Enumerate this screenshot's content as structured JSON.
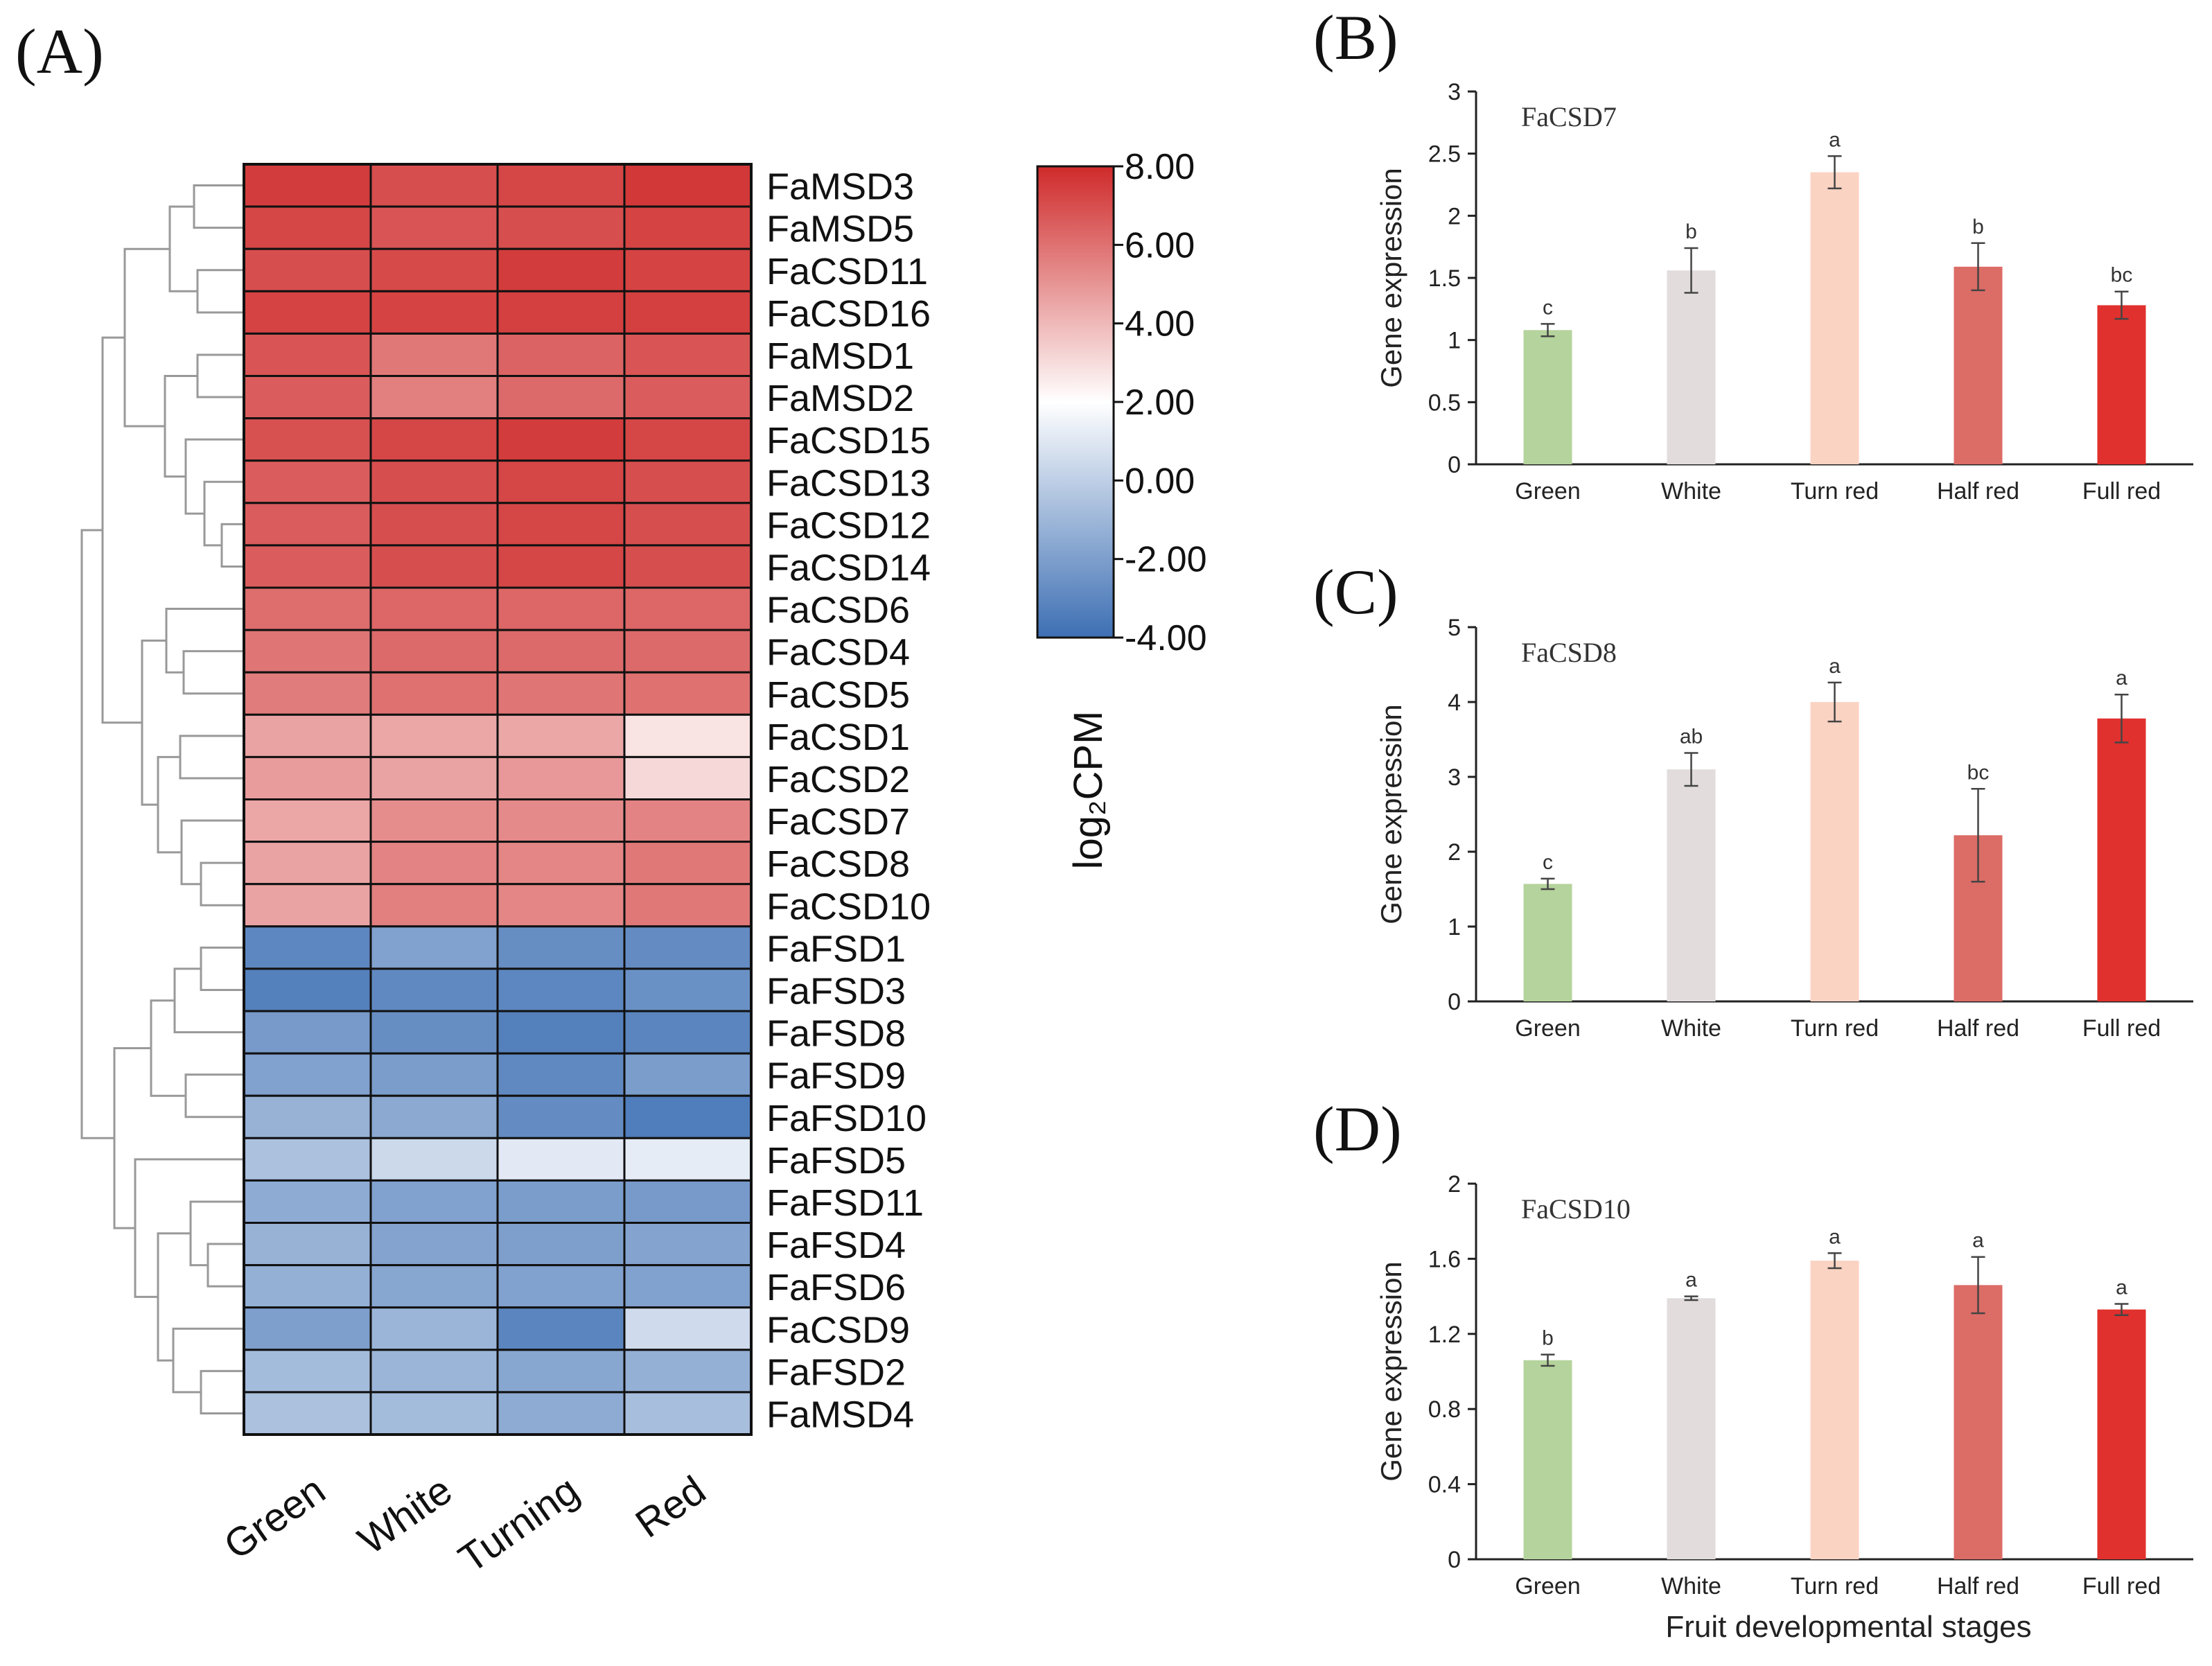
{
  "colors": {
    "heat_high": "#cf2a2a",
    "heat_mid": "#ffffff",
    "heat_low": "#3d6fb3",
    "bar_green": "#b5d39c",
    "bar_white": "#e2dcdc",
    "bar_turn_red": "#fbd3c3",
    "bar_half_red": "#dc6c66",
    "bar_full_red": "#e0312e",
    "axis": "#222222",
    "dendrogram": "#999999"
  },
  "chart_data": [
    {
      "panel_label": "(A)",
      "type": "heatmap",
      "columns": [
        "Green",
        "White",
        "Turning",
        "Red"
      ],
      "rows": [
        "FaMSD3",
        "FaMSD5",
        "FaCSD11",
        "FaCSD16",
        "FaMSD1",
        "FaMSD2",
        "FaCSD15",
        "FaCSD13",
        "FaCSD12",
        "FaCSD14",
        "FaCSD6",
        "FaCSD4",
        "FaCSD5",
        "FaCSD1",
        "FaCSD2",
        "FaCSD7",
        "FaCSD8",
        "FaCSD10",
        "FaFSD1",
        "FaFSD3",
        "FaFSD8",
        "FaFSD9",
        "FaFSD10",
        "FaFSD5",
        "FaFSD11",
        "FaFSD4",
        "FaFSD6",
        "FaCSD9",
        "FaFSD2",
        "FaMSD4"
      ],
      "values": [
        [
          7.5,
          7.0,
          7.2,
          7.6
        ],
        [
          7.2,
          6.8,
          7.0,
          7.3
        ],
        [
          7.0,
          7.1,
          7.5,
          7.3
        ],
        [
          7.3,
          7.3,
          7.4,
          7.4
        ],
        [
          6.8,
          5.8,
          6.4,
          6.8
        ],
        [
          6.6,
          5.6,
          6.2,
          6.6
        ],
        [
          6.9,
          7.2,
          7.5,
          7.2
        ],
        [
          6.6,
          7.0,
          7.2,
          7.0
        ],
        [
          6.6,
          7.0,
          7.2,
          7.0
        ],
        [
          6.6,
          7.0,
          7.2,
          7.0
        ],
        [
          6.1,
          6.3,
          6.3,
          6.3
        ],
        [
          5.9,
          6.2,
          6.2,
          6.2
        ],
        [
          5.7,
          6.0,
          5.9,
          6.0
        ],
        [
          4.6,
          4.5,
          4.5,
          2.8
        ],
        [
          4.8,
          4.6,
          4.9,
          3.1
        ],
        [
          4.5,
          5.2,
          5.3,
          5.5
        ],
        [
          4.6,
          5.5,
          5.4,
          5.8
        ],
        [
          4.6,
          5.6,
          5.4,
          5.8
        ],
        [
          -3.0,
          -1.9,
          -2.7,
          -2.8
        ],
        [
          -3.3,
          -2.9,
          -3.0,
          -2.6
        ],
        [
          -2.2,
          -2.7,
          -3.3,
          -3.1
        ],
        [
          -1.9,
          -2.1,
          -2.9,
          -2.1
        ],
        [
          -1.2,
          -1.6,
          -2.8,
          -3.4
        ],
        [
          -0.6,
          0.4,
          1.1,
          1.2
        ],
        [
          -1.5,
          -1.9,
          -2.1,
          -2.2
        ],
        [
          -1.2,
          -1.8,
          -2.0,
          -1.8
        ],
        [
          -1.3,
          -1.7,
          -1.9,
          -1.9
        ],
        [
          -2.0,
          -1.1,
          -3.1,
          0.5
        ],
        [
          -0.8,
          -1.1,
          -1.7,
          -1.3
        ],
        [
          -0.6,
          -0.8,
          -1.5,
          -0.7
        ]
      ],
      "colorbar": {
        "title": "log₂CPM",
        "min": -4.0,
        "max": 8.0,
        "ticks": [
          "8.00",
          "6.00",
          "4.00",
          "2.00",
          "0.00",
          "-2.00",
          "-4.00"
        ]
      }
    },
    {
      "panel_label": "(B)",
      "type": "bar",
      "gene": "FaCSD7",
      "ylabel": "Gene expression",
      "xlabel": "",
      "categories": [
        "Green",
        "White",
        "Turn red",
        "Half red",
        "Full  red"
      ],
      "values": [
        1.08,
        1.56,
        2.35,
        1.59,
        1.28
      ],
      "errors": [
        0.05,
        0.18,
        0.13,
        0.19,
        0.11
      ],
      "letters": [
        "c",
        "b",
        "a",
        "b",
        "bc"
      ],
      "ylim": [
        0,
        3
      ],
      "yticks": [
        "0",
        "0.5",
        "1",
        "1.5",
        "2",
        "2.5",
        "3"
      ]
    },
    {
      "panel_label": "(C)",
      "type": "bar",
      "gene": "FaCSD8",
      "ylabel": "Gene expression",
      "xlabel": "",
      "categories": [
        "Green",
        "White",
        "Turn red",
        "Half red",
        "Full  red"
      ],
      "values": [
        1.57,
        3.1,
        4.0,
        2.22,
        3.78
      ],
      "errors": [
        0.07,
        0.22,
        0.26,
        0.62,
        0.32
      ],
      "letters": [
        "c",
        "ab",
        "a",
        "bc",
        "a"
      ],
      "ylim": [
        0,
        5
      ],
      "yticks": [
        "0",
        "1",
        "2",
        "3",
        "4",
        "5"
      ]
    },
    {
      "panel_label": "(D)",
      "type": "bar",
      "gene": "FaCSD10",
      "ylabel": "Gene expression",
      "xlabel": "Fruit developmental stages",
      "categories": [
        "Green",
        "White",
        "Turn red",
        "Half red",
        "Full  red"
      ],
      "values": [
        1.06,
        1.39,
        1.59,
        1.46,
        1.33
      ],
      "errors": [
        0.03,
        0.01,
        0.04,
        0.15,
        0.03
      ],
      "letters": [
        "b",
        "a",
        "a",
        "a",
        "a"
      ],
      "ylim": [
        0,
        2
      ],
      "yticks": [
        "0",
        "0.4",
        "0.8",
        "1.2",
        "1.6",
        "2"
      ]
    }
  ]
}
